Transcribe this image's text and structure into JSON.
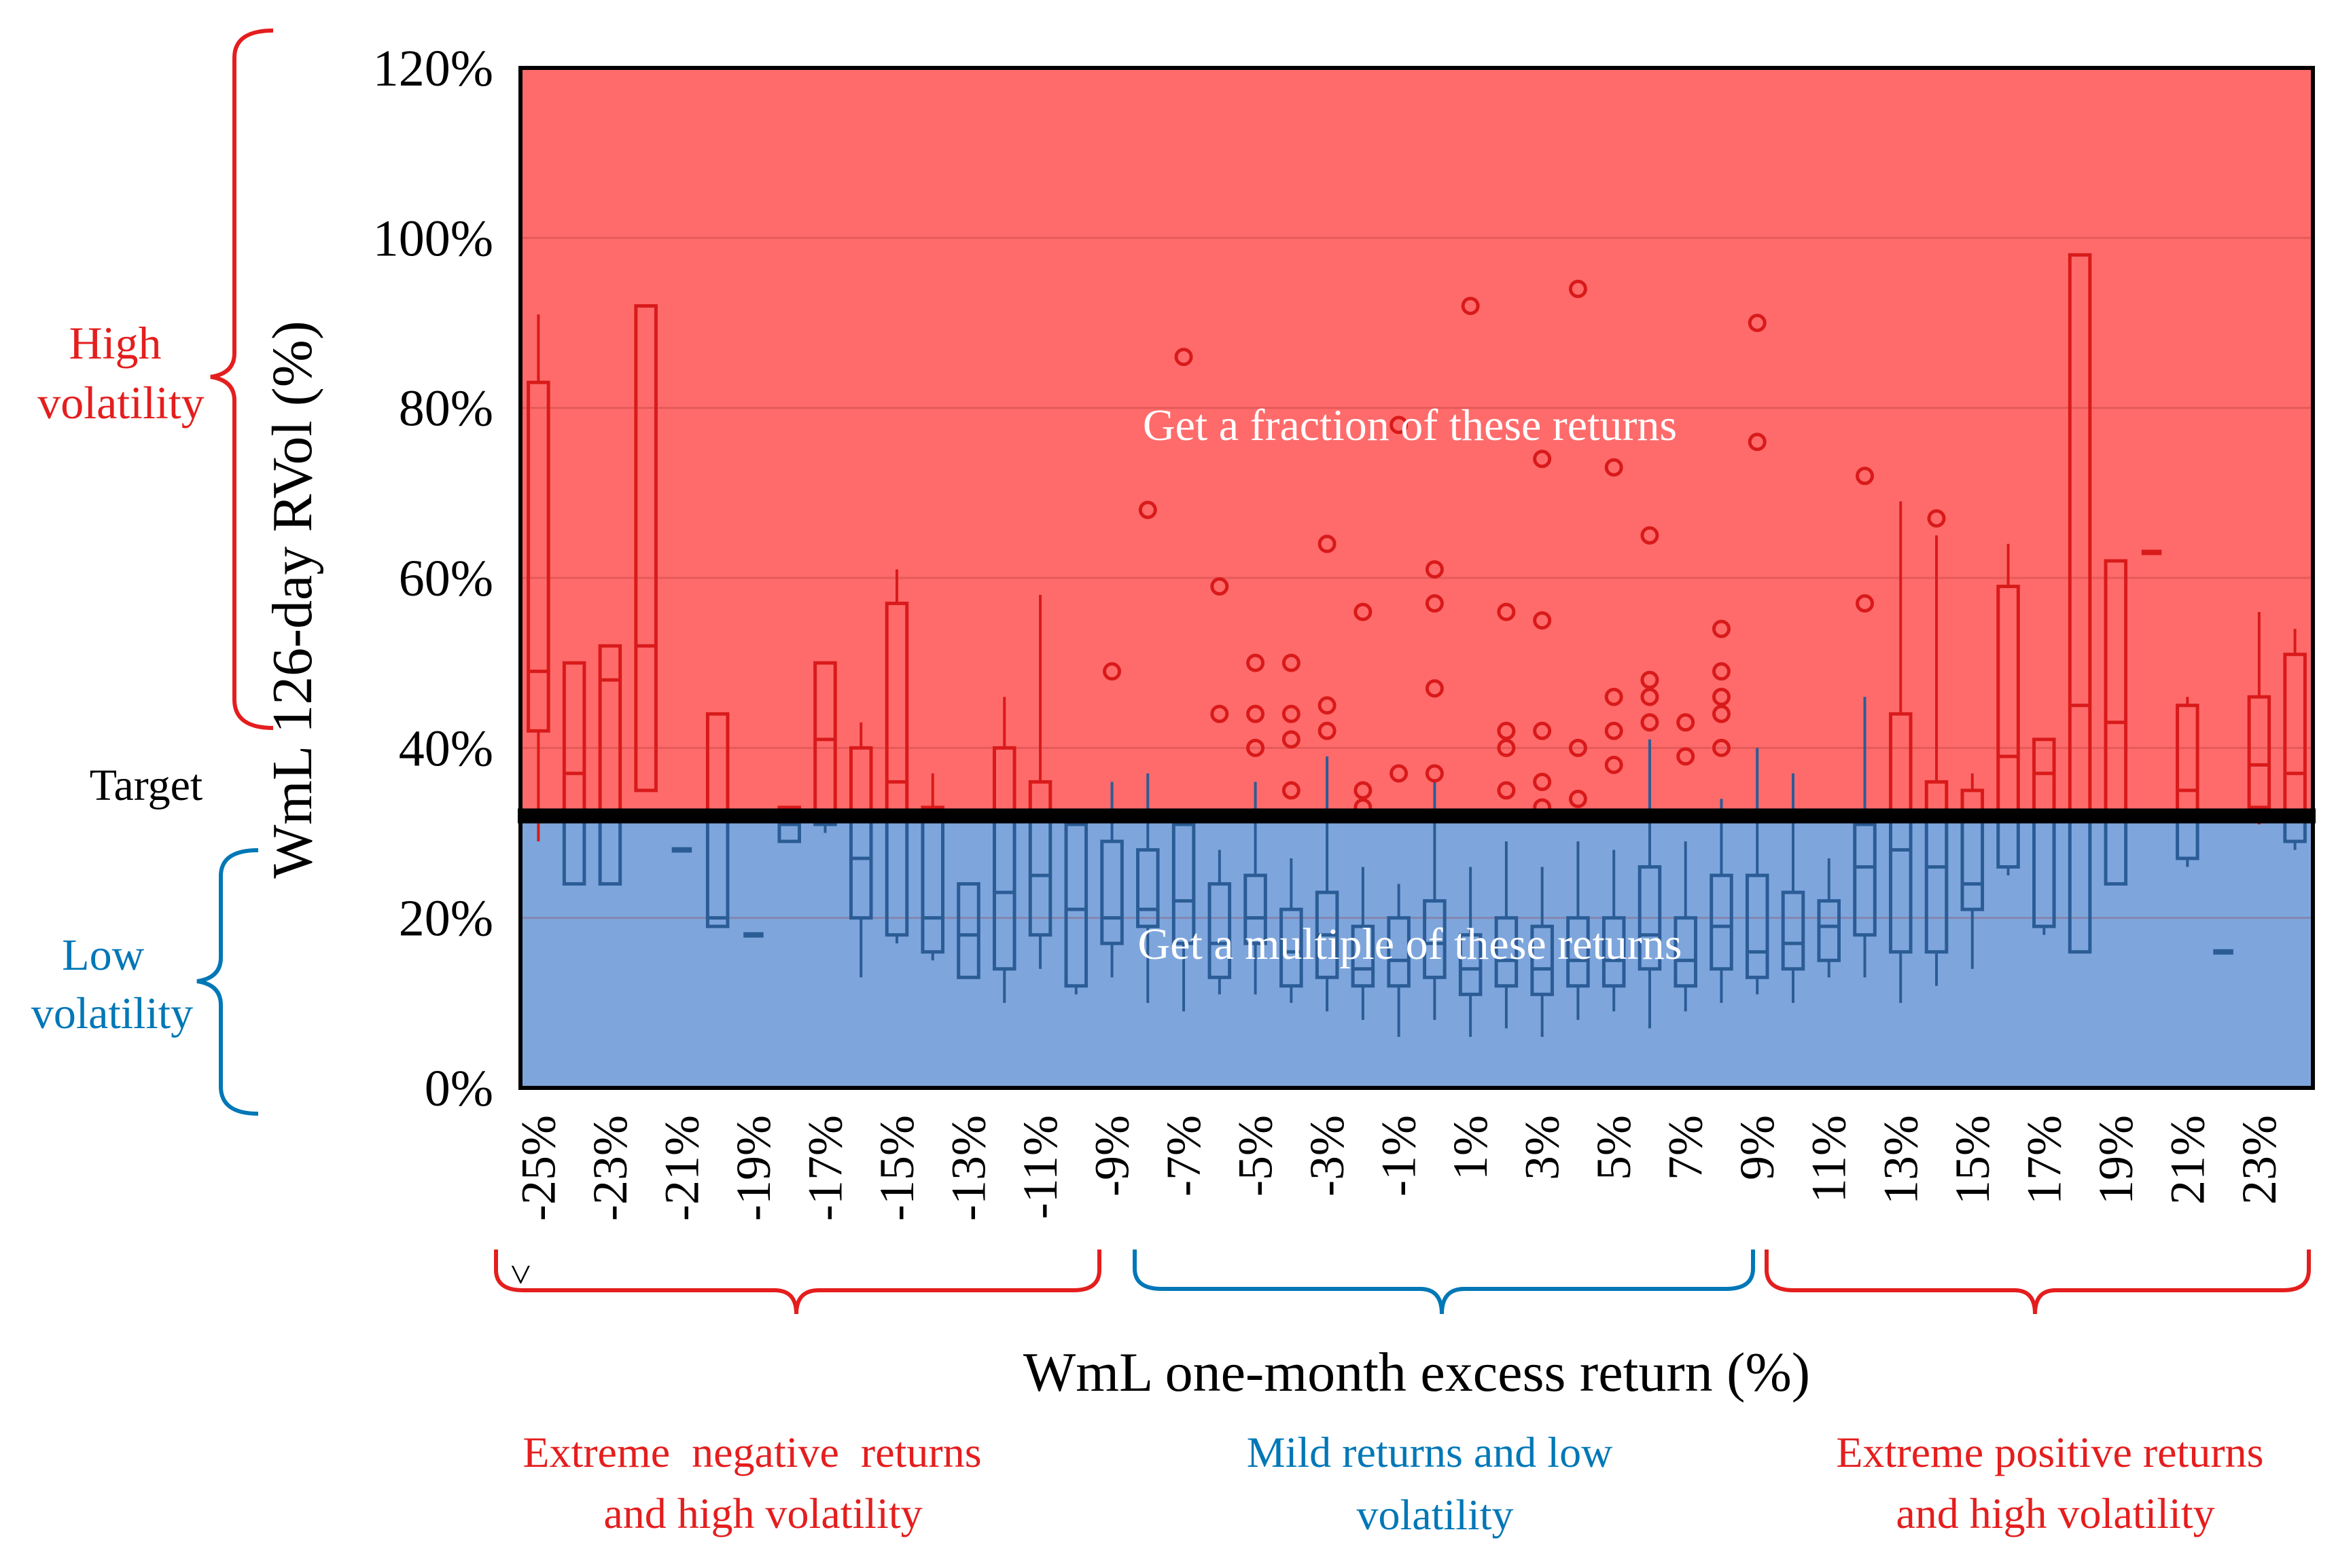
{
  "colors": {
    "high_zone": "#ff6b6b",
    "low_zone": "#7ea6dc",
    "red_ink": "#e41e1e",
    "blue_ink": "#0077b6",
    "box_red": "#d91a1a",
    "box_blue": "#2b5c96",
    "target_line": "#000000"
  },
  "labels": {
    "high_volatility": [
      "High",
      "volatility"
    ],
    "low_volatility": [
      "Low",
      "volatility"
    ],
    "target": "Target",
    "high_zone_text": "Get a fraction of these returns",
    "low_zone_text": "Get a multiple of these returns",
    "tail_marker": "<",
    "group_negative": [
      "Extreme  negative  returns",
      "and high volatility"
    ],
    "group_mild": [
      "Mild returns and low",
      "volatility"
    ],
    "group_positive": [
      "Extreme positive returns",
      "and high volatility"
    ]
  },
  "chart_data": {
    "type": "boxplot",
    "title": "",
    "xlabel": "WmL one-month excess return (%)",
    "ylabel": "WmL 126-day RVol (%)",
    "ylim": [
      0,
      120
    ],
    "yticks": [
      0,
      20,
      40,
      60,
      80,
      100,
      120
    ],
    "ytick_labels": [
      "0%",
      "20%",
      "40%",
      "60%",
      "80%",
      "100%",
      "120%"
    ],
    "target": 32,
    "x_categories": [
      -25,
      -24,
      -23,
      -22,
      -21,
      -20,
      -19,
      -18,
      -17,
      -16,
      -15,
      -14,
      -13,
      -12,
      -11,
      -10,
      -9,
      -8,
      -7,
      -6,
      -5,
      -4,
      -3,
      -2,
      -1,
      0,
      1,
      2,
      3,
      4,
      5,
      6,
      7,
      8,
      9,
      10,
      11,
      12,
      13,
      14,
      15,
      16,
      17,
      18,
      19,
      20,
      21,
      22,
      23,
      24
    ],
    "x_tick_values": [
      -25,
      -23,
      -21,
      -19,
      -17,
      -15,
      -13,
      -11,
      -9,
      -7,
      -5,
      -3,
      -1,
      1,
      3,
      5,
      7,
      9,
      11,
      13,
      15,
      17,
      19,
      21,
      23
    ],
    "x_tick_labels": [
      "-25%",
      "-23%",
      "-21%",
      "-19%",
      "-17%",
      "-15%",
      "-13%",
      "-11%",
      "-9%",
      "-7%",
      "-5%",
      "-3%",
      "-1%",
      "1%",
      "3%",
      "5%",
      "7%",
      "9%",
      "11%",
      "13%",
      "15%",
      "17%",
      "19%",
      "21%",
      "23%"
    ],
    "boxes": [
      {
        "x": -25,
        "wl": 29,
        "q1": 42,
        "med": 49,
        "q3": 83,
        "wh": 91
      },
      {
        "x": -24,
        "q1": 24,
        "med": 37,
        "q3": 50
      },
      {
        "x": -23,
        "q1": 24,
        "med": 48,
        "q3": 52
      },
      {
        "x": -22,
        "q1": 35,
        "med": 52,
        "q3": 92
      },
      {
        "x": -21,
        "q1": 28,
        "med": 28,
        "q3": 28
      },
      {
        "x": -20,
        "q1": 19,
        "med": 20,
        "q3": 44
      },
      {
        "x": -19,
        "q1": 18,
        "med": 18,
        "q3": 18
      },
      {
        "x": -18,
        "q1": 29,
        "med": 31,
        "q3": 33
      },
      {
        "x": -17,
        "wl": 30,
        "q1": 31,
        "med": 41,
        "q3": 50
      },
      {
        "x": -16,
        "wl": 13,
        "q1": 20,
        "med": 27,
        "q3": 40,
        "wh": 43
      },
      {
        "x": -15,
        "wl": 17,
        "q1": 18,
        "med": 36,
        "q3": 57,
        "wh": 61
      },
      {
        "x": -14,
        "wl": 15,
        "q1": 16,
        "med": 20,
        "q3": 33,
        "wh": 37
      },
      {
        "x": -13,
        "wl": 13,
        "q1": 13,
        "med": 18,
        "q3": 24,
        "wh": 24
      },
      {
        "x": -12,
        "wl": 10,
        "q1": 14,
        "med": 23,
        "q3": 40,
        "wh": 46
      },
      {
        "x": -11,
        "wl": 14,
        "q1": 18,
        "med": 25,
        "q3": 36,
        "wh": 58
      },
      {
        "x": -10,
        "wl": 11,
        "q1": 12,
        "med": 21,
        "q3": 31,
        "wh": 31
      },
      {
        "x": -9,
        "wl": 13,
        "q1": 17,
        "med": 20,
        "q3": 29,
        "wh": 36
      },
      {
        "x": -8,
        "wl": 10,
        "q1": 19,
        "med": 21,
        "q3": 28,
        "wh": 37
      },
      {
        "x": -7,
        "wl": 9,
        "q1": 17,
        "med": 22,
        "q3": 31,
        "wh": 31
      },
      {
        "x": -6,
        "wl": 11,
        "q1": 13,
        "med": 17,
        "q3": 24,
        "wh": 28
      },
      {
        "x": -5,
        "wl": 11,
        "q1": 17,
        "med": 20,
        "q3": 25,
        "wh": 36
      },
      {
        "x": -4,
        "wl": 10,
        "q1": 12,
        "med": 16,
        "q3": 21,
        "wh": 27
      },
      {
        "x": -3,
        "wl": 9,
        "q1": 13,
        "med": 18,
        "q3": 23,
        "wh": 39
      },
      {
        "x": -2,
        "wl": 8,
        "q1": 12,
        "med": 14,
        "q3": 19,
        "wh": 26
      },
      {
        "x": -1,
        "wl": 6,
        "q1": 12,
        "med": 15,
        "q3": 20,
        "wh": 24
      },
      {
        "x": 0,
        "wl": 8,
        "q1": 13,
        "med": 17,
        "q3": 22,
        "wh": 36
      },
      {
        "x": 1,
        "wl": 6,
        "q1": 11,
        "med": 14,
        "q3": 18,
        "wh": 26
      },
      {
        "x": 2,
        "wl": 7,
        "q1": 12,
        "med": 15,
        "q3": 20,
        "wh": 29
      },
      {
        "x": 3,
        "wl": 6,
        "q1": 11,
        "med": 14,
        "q3": 19,
        "wh": 26
      },
      {
        "x": 4,
        "wl": 8,
        "q1": 12,
        "med": 15,
        "q3": 20,
        "wh": 29
      },
      {
        "x": 5,
        "wl": 9,
        "q1": 12,
        "med": 15,
        "q3": 20,
        "wh": 28
      },
      {
        "x": 6,
        "wl": 7,
        "q1": 14,
        "med": 18,
        "q3": 26,
        "wh": 41
      },
      {
        "x": 7,
        "wl": 9,
        "q1": 12,
        "med": 15,
        "q3": 20,
        "wh": 29
      },
      {
        "x": 8,
        "wl": 10,
        "q1": 14,
        "med": 19,
        "q3": 25,
        "wh": 34
      },
      {
        "x": 9,
        "wl": 11,
        "q1": 13,
        "med": 16,
        "q3": 25,
        "wh": 40
      },
      {
        "x": 10,
        "wl": 10,
        "q1": 14,
        "med": 17,
        "q3": 23,
        "wh": 37
      },
      {
        "x": 11,
        "wl": 13,
        "q1": 15,
        "med": 19,
        "q3": 22,
        "wh": 27
      },
      {
        "x": 12,
        "wl": 13,
        "q1": 18,
        "med": 26,
        "q3": 31,
        "wh": 46
      },
      {
        "x": 13,
        "wl": 10,
        "q1": 16,
        "med": 28,
        "q3": 44,
        "wh": 69
      },
      {
        "x": 14,
        "wl": 12,
        "q1": 16,
        "med": 26,
        "q3": 36,
        "wh": 65
      },
      {
        "x": 15,
        "wl": 14,
        "q1": 21,
        "med": 24,
        "q3": 35,
        "wh": 37
      },
      {
        "x": 16,
        "wl": 25,
        "q1": 26,
        "med": 39,
        "q3": 59,
        "wh": 64
      },
      {
        "x": 17,
        "wl": 18,
        "q1": 19,
        "med": 37,
        "q3": 41,
        "wh": 41
      },
      {
        "x": 18,
        "q1": 16,
        "med": 45,
        "q3": 98
      },
      {
        "x": 19,
        "q1": 24,
        "med": 43,
        "q3": 62
      },
      {
        "x": 20,
        "q1": 63,
        "med": 63,
        "q3": 63
      },
      {
        "x": 21,
        "wl": 26,
        "q1": 27,
        "med": 35,
        "q3": 45,
        "wh": 46
      },
      {
        "x": 22,
        "q1": 16,
        "med": 16,
        "q3": 16
      },
      {
        "x": 23,
        "wl": 31,
        "q1": 33,
        "med": 38,
        "q3": 46,
        "wh": 56
      },
      {
        "x": 24,
        "wl": 28,
        "q1": 29,
        "med": 37,
        "q3": 51,
        "wh": 54
      }
    ],
    "outliers": [
      {
        "x": -9,
        "y": 49
      },
      {
        "x": -8,
        "y": 68
      },
      {
        "x": -7,
        "y": 86
      },
      {
        "x": -6,
        "y": 59
      },
      {
        "x": -6,
        "y": 44
      },
      {
        "x": -5,
        "y": 50
      },
      {
        "x": -5,
        "y": 44
      },
      {
        "x": -5,
        "y": 40
      },
      {
        "x": -4,
        "y": 50
      },
      {
        "x": -4,
        "y": 44
      },
      {
        "x": -4,
        "y": 41
      },
      {
        "x": -4,
        "y": 35
      },
      {
        "x": -3,
        "y": 64
      },
      {
        "x": -3,
        "y": 45
      },
      {
        "x": -3,
        "y": 42
      },
      {
        "x": -2,
        "y": 56
      },
      {
        "x": -2,
        "y": 35
      },
      {
        "x": -2,
        "y": 33
      },
      {
        "x": -1,
        "y": 78
      },
      {
        "x": -1,
        "y": 37
      },
      {
        "x": 0,
        "y": 61
      },
      {
        "x": 0,
        "y": 57
      },
      {
        "x": 0,
        "y": 47
      },
      {
        "x": 0,
        "y": 37
      },
      {
        "x": 1,
        "y": 92
      },
      {
        "x": 2,
        "y": 56
      },
      {
        "x": 2,
        "y": 42
      },
      {
        "x": 2,
        "y": 40
      },
      {
        "x": 2,
        "y": 35
      },
      {
        "x": 3,
        "y": 74
      },
      {
        "x": 3,
        "y": 55
      },
      {
        "x": 3,
        "y": 42
      },
      {
        "x": 3,
        "y": 36
      },
      {
        "x": 3,
        "y": 33
      },
      {
        "x": 4,
        "y": 94
      },
      {
        "x": 4,
        "y": 40
      },
      {
        "x": 4,
        "y": 34
      },
      {
        "x": 5,
        "y": 73
      },
      {
        "x": 5,
        "y": 46
      },
      {
        "x": 5,
        "y": 42
      },
      {
        "x": 5,
        "y": 38
      },
      {
        "x": 6,
        "y": 65
      },
      {
        "x": 6,
        "y": 48
      },
      {
        "x": 6,
        "y": 46
      },
      {
        "x": 6,
        "y": 43
      },
      {
        "x": 7,
        "y": 43
      },
      {
        "x": 7,
        "y": 39
      },
      {
        "x": 8,
        "y": 54
      },
      {
        "x": 8,
        "y": 49
      },
      {
        "x": 8,
        "y": 46
      },
      {
        "x": 8,
        "y": 44
      },
      {
        "x": 8,
        "y": 40
      },
      {
        "x": 9,
        "y": 90
      },
      {
        "x": 9,
        "y": 76
      },
      {
        "x": 12,
        "y": 72
      },
      {
        "x": 12,
        "y": 57
      },
      {
        "x": 14,
        "y": 67
      }
    ]
  }
}
